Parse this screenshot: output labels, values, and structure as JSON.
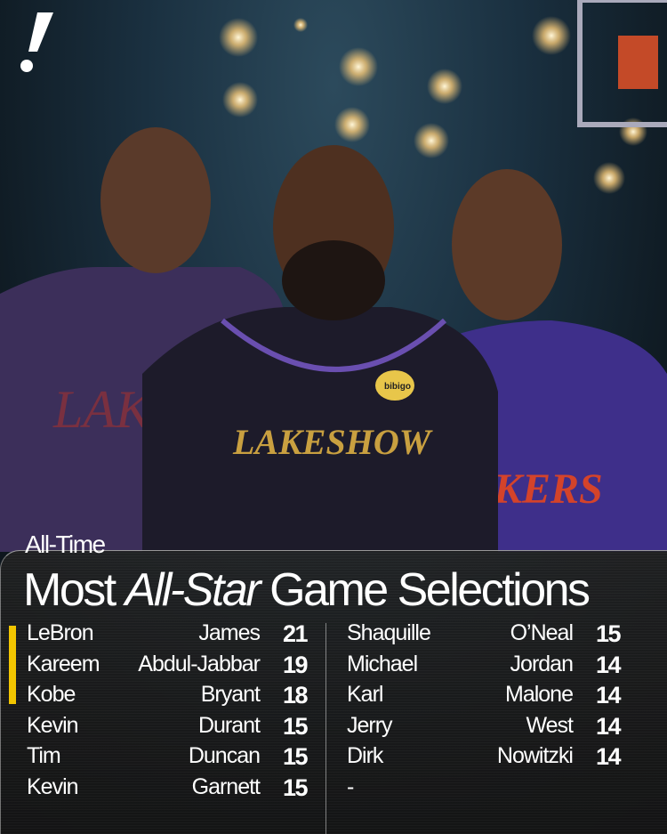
{
  "brand": {
    "logo": "!",
    "accent": "#f2c500"
  },
  "heading": {
    "subtitle": "All-Time",
    "title_pre": "Most ",
    "title_italic": "All-Star",
    "title_post": " Game Selections"
  },
  "left_column": [
    {
      "first": "LeBron",
      "last": "James",
      "selections": "21"
    },
    {
      "first": "Kareem",
      "last": "Abdul-Jabbar",
      "selections": "19"
    },
    {
      "first": "Kobe",
      "last": "Bryant",
      "selections": "18"
    },
    {
      "first": "Kevin",
      "last": "Durant",
      "selections": "15"
    },
    {
      "first": "Tim",
      "last": "Duncan",
      "selections": "15"
    },
    {
      "first": "Kevin",
      "last": "Garnett",
      "selections": "15"
    }
  ],
  "right_column": [
    {
      "first": "Shaquille",
      "last": "O’Neal",
      "selections": "15"
    },
    {
      "first": "Michael",
      "last": "Jordan",
      "selections": "14"
    },
    {
      "first": "Karl",
      "last": "Malone",
      "selections": "14"
    },
    {
      "first": "Jerry",
      "last": "West",
      "selections": "14"
    },
    {
      "first": "Dirk",
      "last": "Nowitzki",
      "selections": "14"
    },
    {
      "first": "-",
      "last": "",
      "selections": ""
    }
  ],
  "jersey_text": {
    "center": "LAKESHOW",
    "right": "KERS",
    "left": "LAKE",
    "sponsor": "bibigo"
  }
}
